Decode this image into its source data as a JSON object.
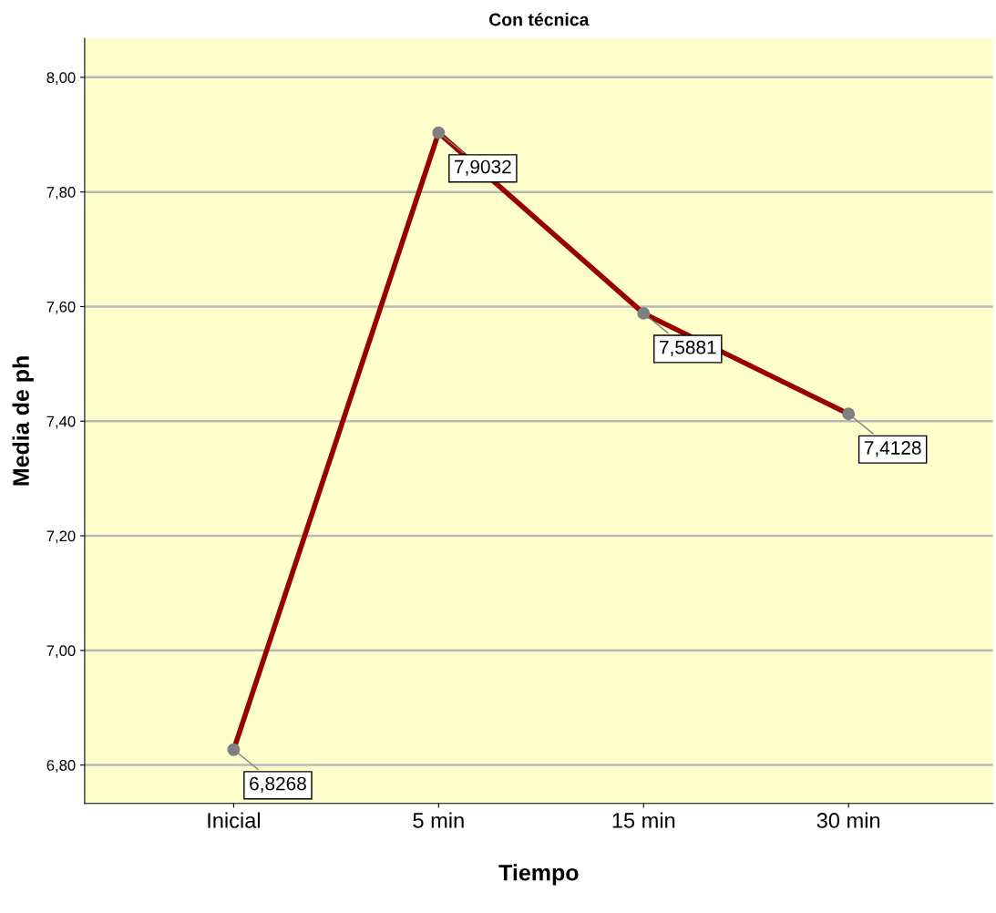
{
  "chart_data": {
    "type": "line",
    "title": "Con técnica",
    "xlabel": "Tiempo",
    "ylabel": "Media de ph",
    "categories": [
      "Inicial",
      "5 min",
      "15 min",
      "30 min"
    ],
    "series": [
      {
        "color": "#990000",
        "colors": [
          "#808080",
          "#808080",
          "#808080",
          "#808080"
        ],
        "values": [
          6.8268,
          7.9032,
          7.5881,
          7.4128
        ],
        "value_labels": [
          "6,8268",
          "7,9032",
          "7,5881",
          "7,4128"
        ]
      }
    ],
    "ylim": [
      6.733,
      8.068
    ],
    "yticks": [
      {
        "value": 6.8,
        "label": "6,80"
      },
      {
        "value": 7.0,
        "label": "7,00"
      },
      {
        "value": 7.2,
        "label": "7,20"
      },
      {
        "value": 7.4,
        "label": "7,40"
      },
      {
        "value": 7.6,
        "label": "7,60"
      },
      {
        "value": 7.8,
        "label": "7,80"
      },
      {
        "value": 8.0,
        "label": "8,00"
      }
    ],
    "grid": "y",
    "marker": "circle",
    "line_style": "solid",
    "legend": false
  }
}
